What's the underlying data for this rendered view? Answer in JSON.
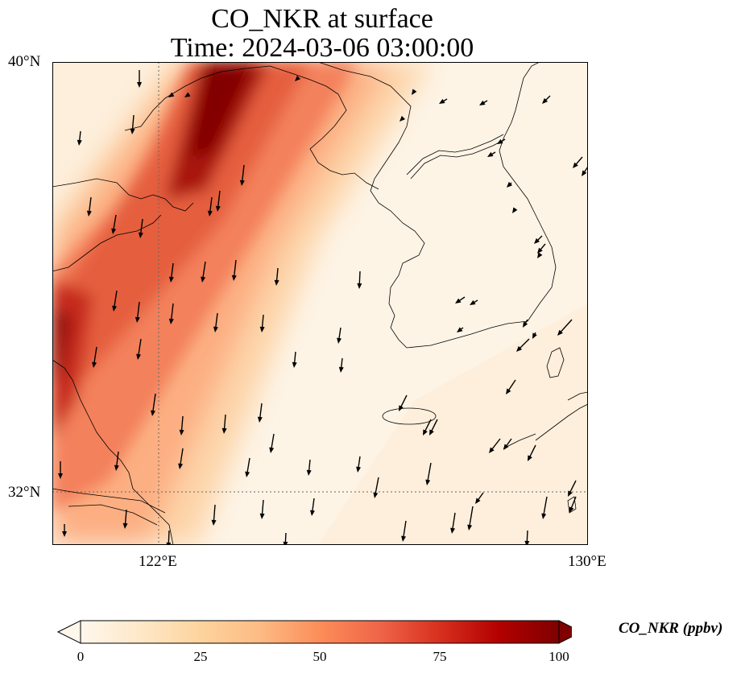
{
  "title": {
    "line1": "CO_NKR at surface",
    "line2": "Time: 2024-03-06 03:00:00"
  },
  "map": {
    "lat_labels": [
      "40°N",
      "32°N"
    ],
    "lon_labels": [
      "122°E",
      "130°E"
    ],
    "extent": {
      "lon_min": 120,
      "lon_max": 130,
      "lat_min": 31,
      "lat_max": 40
    },
    "gridlines": {
      "lon": [
        122
      ],
      "lat": [
        32
      ]
    },
    "colormap": "OrRd",
    "wind_direction": "mostly from north, some from northeast"
  },
  "colorbar": {
    "label": "CO_NKR (ppbv)",
    "ticks": [
      "0",
      "25",
      "50",
      "75",
      "100"
    ],
    "range": [
      0,
      100
    ],
    "extend": "both",
    "colors": [
      "#fff7ec",
      "#fee8c8",
      "#fdd49e",
      "#fdbb84",
      "#fc8d59",
      "#ef6548",
      "#d7301f",
      "#b30000",
      "#7f0000"
    ]
  }
}
